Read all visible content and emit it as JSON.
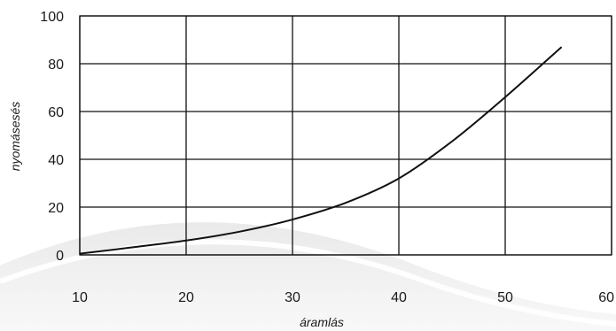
{
  "chart_data": {
    "type": "line",
    "title": "",
    "xlabel": "áramlás",
    "ylabel": "nyomásesés",
    "xlim": [
      10,
      60
    ],
    "ylim": [
      0,
      100
    ],
    "x_ticks": [
      10,
      20,
      30,
      40,
      50,
      60
    ],
    "y_ticks": [
      0,
      20,
      40,
      60,
      80,
      100
    ],
    "grid": true,
    "series": [
      {
        "x": [
          10,
          15,
          20,
          25,
          30,
          35,
          40,
          45,
          50,
          55.3
        ],
        "values": [
          0.5,
          3.2,
          6,
          9.7,
          14.8,
          21.8,
          32,
          47.5,
          66,
          87
        ]
      }
    ]
  }
}
